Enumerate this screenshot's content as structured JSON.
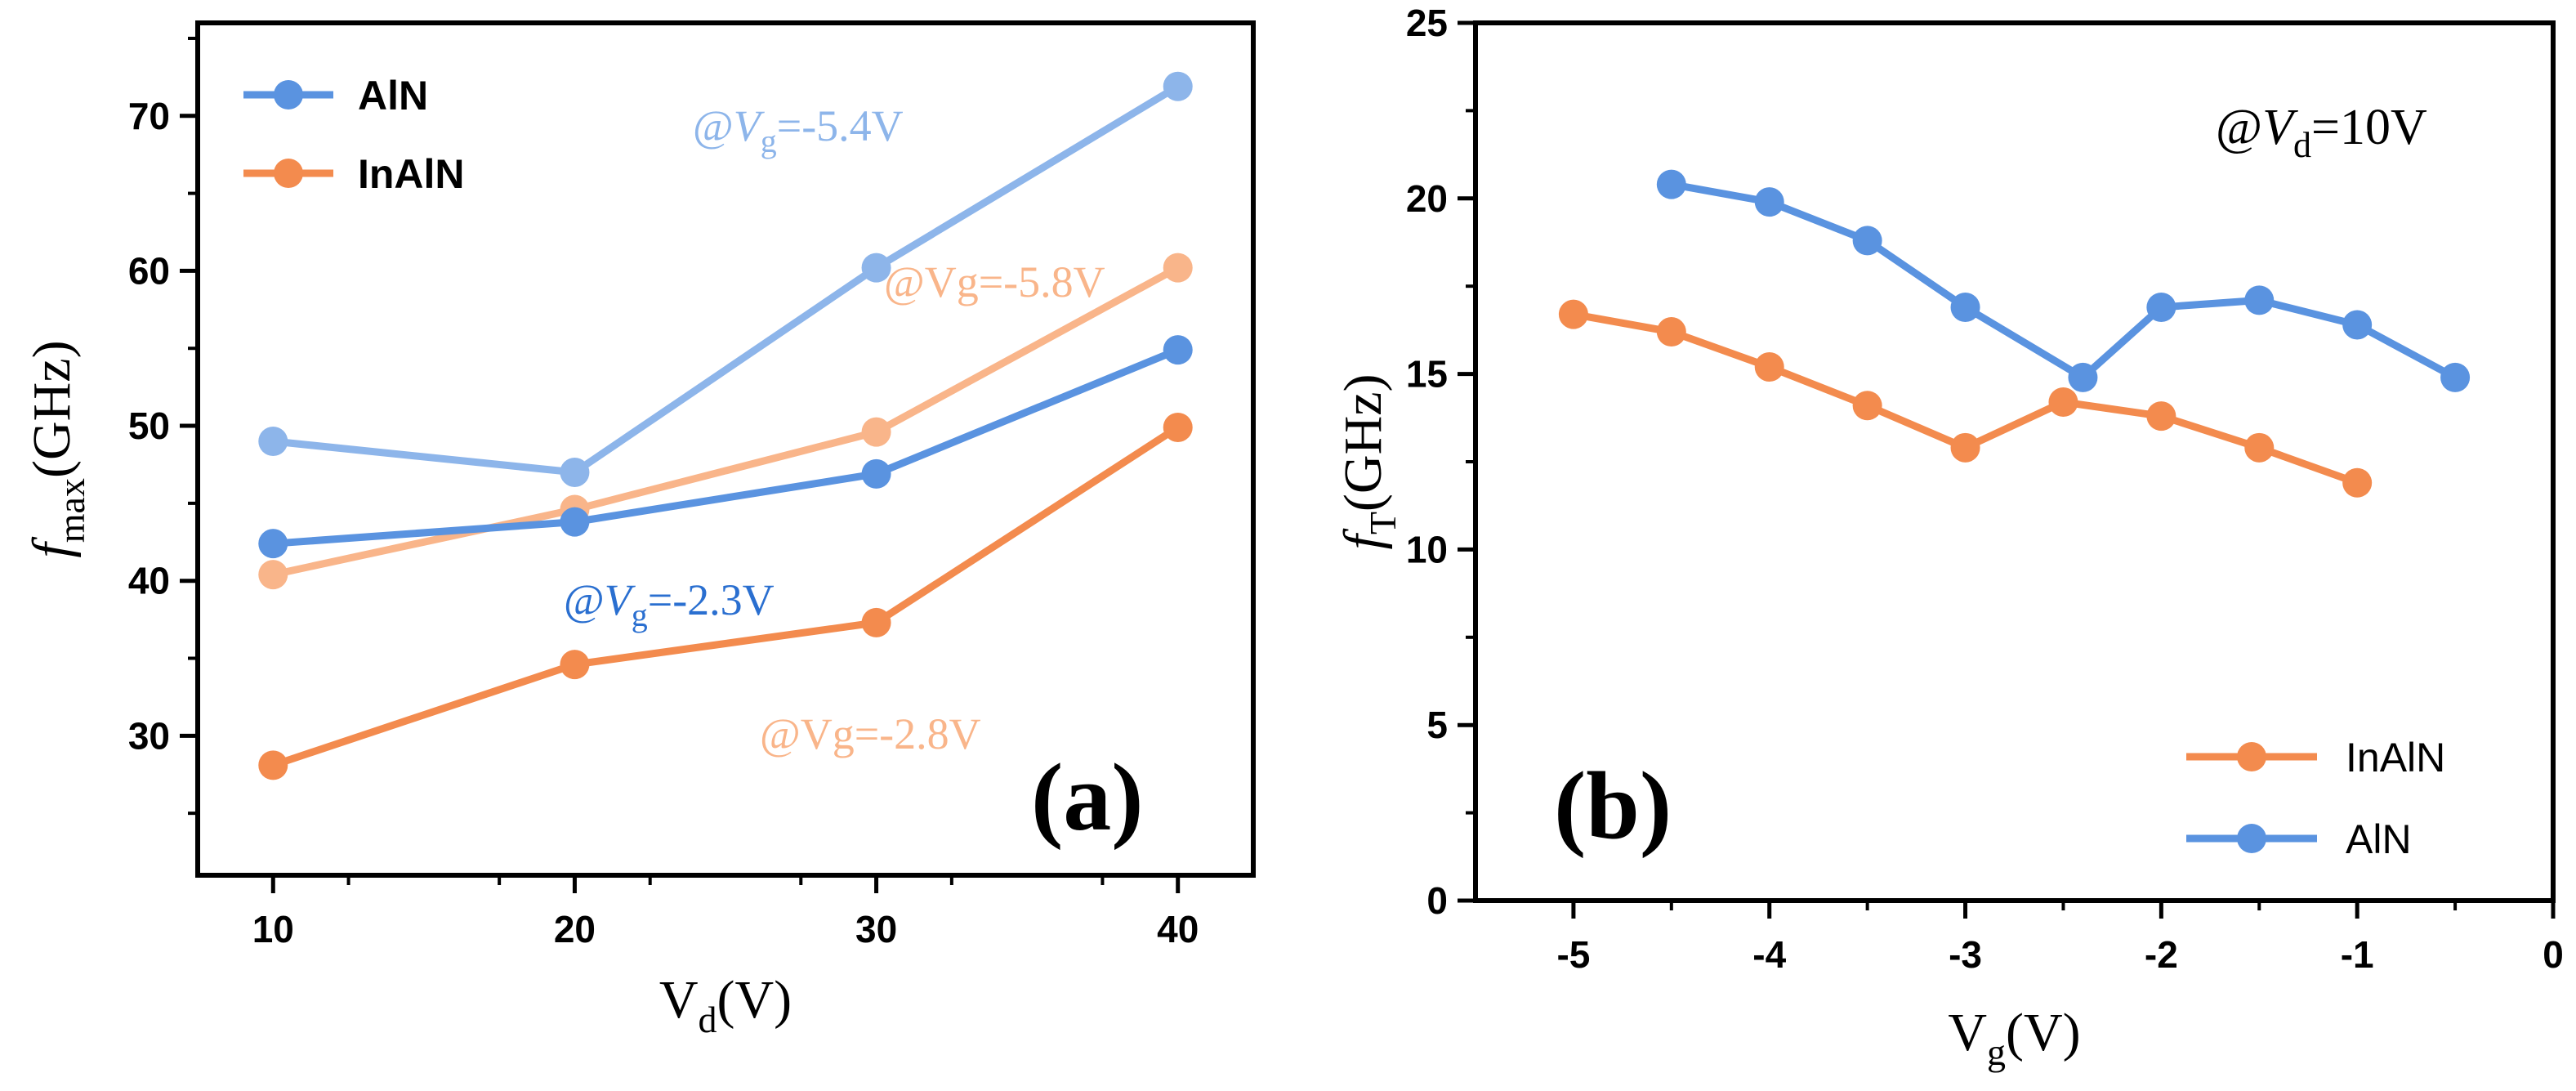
{
  "chart_data": [
    {
      "type": "line",
      "panel_label": "(a)",
      "title": "",
      "xlabel": {
        "main": "V",
        "sub": "d",
        "tail": "(V)"
      },
      "ylabel": {
        "main": "f",
        "sub": "max",
        "tail": "(GHz)"
      },
      "xlim": [
        7.5,
        42.5
      ],
      "ylim": [
        21.0,
        76.0
      ],
      "xticks": [
        10,
        20,
        30,
        40
      ],
      "yticks": [
        30,
        40,
        50,
        60,
        70
      ],
      "x": [
        10,
        20,
        30,
        40
      ],
      "series": [
        {
          "name": "AlN @Vg=-5.4V",
          "color": "#8db5ea",
          "values": [
            49.0,
            47.0,
            60.2,
            71.9
          ]
        },
        {
          "name": "InAlN @Vg=-5.8V",
          "color": "#f9b58a",
          "values": [
            40.4,
            44.6,
            49.6,
            60.2
          ]
        },
        {
          "name": "AlN @Vg=-2.3V",
          "color": "#5a93e0",
          "values": [
            42.4,
            43.8,
            46.9,
            54.9
          ]
        },
        {
          "name": "InAlN @Vg=-2.8V",
          "color": "#f38b4e",
          "values": [
            28.1,
            34.6,
            37.3,
            49.9
          ]
        }
      ],
      "legend": {
        "position": "top-left",
        "entries": [
          {
            "label": "AlN",
            "color": "#5a93e0"
          },
          {
            "label": "InAlN",
            "color": "#f38b4e"
          }
        ]
      },
      "annotations": [
        {
          "prefix": "@",
          "italic": "V",
          "sub": "g",
          "tail": "=-5.4V",
          "color": "#8db5ea"
        },
        {
          "prefix": "",
          "italic": "",
          "sub": "",
          "tail": "@Vg=-5.8V",
          "color": "#f9b58a"
        },
        {
          "prefix": "@",
          "italic": "V",
          "sub": "g",
          "tail": "=-2.3V",
          "color": "#2a6fd0"
        },
        {
          "prefix": "",
          "italic": "",
          "sub": "",
          "tail": "@Vg=-2.8V",
          "color": "#f9b58a"
        }
      ]
    },
    {
      "type": "line",
      "panel_label": "(b)",
      "title": "",
      "xlabel": {
        "main": "V",
        "sub": "g",
        "tail": "(V)"
      },
      "ylabel": {
        "main": "f",
        "sub": "T",
        "tail": "(GHz)"
      },
      "xlim": [
        -5.5,
        0
      ],
      "ylim": [
        0,
        25
      ],
      "xticks": [
        -5,
        -4,
        -3,
        -2,
        -1,
        0
      ],
      "yticks": [
        0,
        5,
        10,
        15,
        20,
        25
      ],
      "corner_text": {
        "prefix": "@",
        "italic": "V",
        "sub": "d",
        "tail": "=10V"
      },
      "series": [
        {
          "name": "AlN",
          "color": "#5a93e0",
          "x": [
            -4.5,
            -4.0,
            -3.5,
            -3.0,
            -2.4,
            -2.0,
            -1.5,
            -1.0,
            -0.5
          ],
          "values": [
            20.4,
            19.9,
            18.8,
            16.9,
            14.9,
            16.9,
            17.1,
            16.4,
            14.9
          ]
        },
        {
          "name": "InAlN",
          "color": "#f38b4e",
          "x": [
            -5.0,
            -4.5,
            -4.0,
            -3.5,
            -3.0,
            -2.5,
            -2.0,
            -1.5,
            -1.0
          ],
          "values": [
            16.7,
            16.2,
            15.2,
            14.1,
            12.9,
            14.2,
            13.8,
            12.9,
            11.9
          ]
        }
      ],
      "legend": {
        "position": "bottom-right",
        "entries": [
          {
            "label": "InAlN",
            "color": "#f38b4e"
          },
          {
            "label": "AlN",
            "color": "#5a93e0"
          }
        ]
      }
    }
  ]
}
